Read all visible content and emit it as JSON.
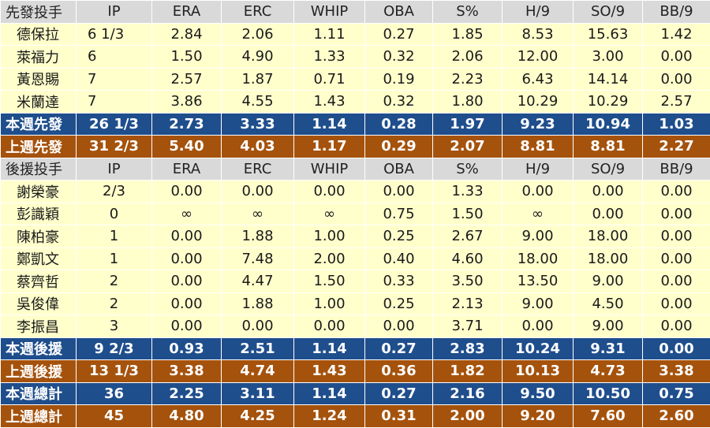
{
  "columns": [
    "IP",
    "ERA",
    "ERC",
    "WHIP",
    "OBA",
    "S%",
    "H/9",
    "SO/9",
    "BB/9"
  ],
  "starters": {
    "header": "先發投手",
    "rows": [
      {
        "name": "德保拉",
        "cells": [
          "6 1/3",
          "2.84",
          "2.06",
          "1.11",
          "0.27",
          "1.85",
          "8.53",
          "15.63",
          "1.42"
        ]
      },
      {
        "name": "萊福力",
        "cells": [
          "6",
          "1.50",
          "4.90",
          "1.33",
          "0.32",
          "2.06",
          "12.00",
          "3.00",
          "0.00"
        ]
      },
      {
        "name": "黃恩賜",
        "cells": [
          "7",
          "2.57",
          "1.87",
          "0.71",
          "0.19",
          "2.23",
          "6.43",
          "14.14",
          "0.00"
        ]
      },
      {
        "name": "米蘭達",
        "cells": [
          "7",
          "3.86",
          "4.55",
          "1.43",
          "0.32",
          "1.80",
          "10.29",
          "10.29",
          "2.57"
        ]
      }
    ],
    "this_week": {
      "name": "本週先發",
      "cells": [
        "26 1/3",
        "2.73",
        "3.33",
        "1.14",
        "0.28",
        "1.97",
        "9.23",
        "10.94",
        "1.03"
      ]
    },
    "last_week": {
      "name": "上週先發",
      "cells": [
        "31 2/3",
        "5.40",
        "4.03",
        "1.17",
        "0.29",
        "2.07",
        "8.81",
        "8.81",
        "2.27"
      ]
    }
  },
  "relievers": {
    "header": "後援投手",
    "rows": [
      {
        "name": "謝榮豪",
        "cells": [
          "2/3",
          "0.00",
          "0.00",
          "0.00",
          "0.00",
          "1.33",
          "0.00",
          "0.00",
          "0.00"
        ]
      },
      {
        "name": "彭識穎",
        "cells": [
          "0",
          "∞",
          "∞",
          "∞",
          "0.75",
          "1.50",
          "∞",
          "0.00",
          "0.00"
        ]
      },
      {
        "name": "陳柏豪",
        "cells": [
          "1",
          "0.00",
          "1.88",
          "1.00",
          "0.25",
          "2.67",
          "9.00",
          "18.00",
          "0.00"
        ]
      },
      {
        "name": "鄭凱文",
        "cells": [
          "1",
          "0.00",
          "7.48",
          "2.00",
          "0.40",
          "4.60",
          "18.00",
          "18.00",
          "0.00"
        ]
      },
      {
        "name": "蔡齊哲",
        "cells": [
          "2",
          "0.00",
          "4.47",
          "1.50",
          "0.33",
          "3.50",
          "13.50",
          "9.00",
          "0.00"
        ]
      },
      {
        "name": "吳俊偉",
        "cells": [
          "2",
          "0.00",
          "1.88",
          "1.00",
          "0.25",
          "2.13",
          "9.00",
          "4.50",
          "0.00"
        ]
      },
      {
        "name": "李振昌",
        "cells": [
          "3",
          "0.00",
          "0.00",
          "0.00",
          "0.00",
          "3.71",
          "0.00",
          "9.00",
          "0.00"
        ]
      }
    ],
    "this_week": {
      "name": "本週後援",
      "cells": [
        "9 2/3",
        "0.93",
        "2.51",
        "1.14",
        "0.27",
        "2.83",
        "10.24",
        "9.31",
        "0.00"
      ]
    },
    "last_week": {
      "name": "上週後援",
      "cells": [
        "13 1/3",
        "3.38",
        "4.74",
        "1.43",
        "0.36",
        "1.82",
        "10.13",
        "4.73",
        "3.38"
      ]
    }
  },
  "totals": {
    "this_week": {
      "name": "本週總計",
      "cells": [
        "36",
        "2.25",
        "3.11",
        "1.14",
        "0.27",
        "2.16",
        "9.50",
        "10.50",
        "0.75"
      ]
    },
    "last_week": {
      "name": "上週總計",
      "cells": [
        "45",
        "4.80",
        "4.25",
        "1.24",
        "0.31",
        "2.00",
        "9.20",
        "7.60",
        "2.60"
      ]
    }
  },
  "colors": {
    "header_bg": "#d9d9d9",
    "row_bg": "#ffffcc",
    "this_week_bg": "#1f4e8c",
    "last_week_bg": "#a5520c"
  }
}
